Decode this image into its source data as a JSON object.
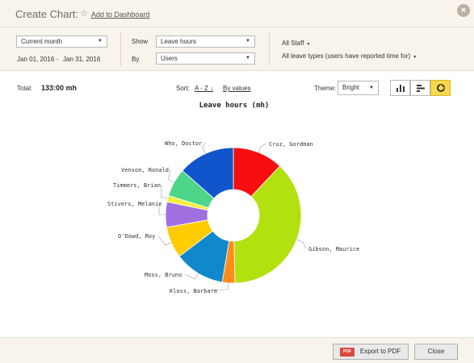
{
  "header": {
    "title": "Create Chart:",
    "add_dashboard": "Add to Dashboard",
    "close_symbol": "×"
  },
  "filters": {
    "period": {
      "value": "Current month"
    },
    "date_from": "Jan 01, 2016",
    "date_sep": "-",
    "date_to": "Jan 31, 2016",
    "show_label": "Show",
    "show_value": "Leave hours",
    "by_label": "By",
    "by_value": "Users",
    "staff": "All Staff",
    "leave_types": "All leave types (users have reported time for)"
  },
  "toolbar": {
    "total_label": "Total:",
    "total_value": "133:00 mh",
    "sort_label": "Sort:",
    "sort_az": "A - Z ↓",
    "sort_by_values": "By values",
    "theme_label": "Theme:",
    "theme_value": "Bright",
    "view_buttons": [
      "bar-vertical",
      "bar-horizontal",
      "pie"
    ],
    "active_view": "pie"
  },
  "chart_data": {
    "type": "pie",
    "title": "Leave hours (mh)",
    "donut": true,
    "slices": [
      {
        "label": "Cruz, Gordman",
        "value": 16,
        "color": "#f70f0f"
      },
      {
        "label": "Gibson, Maurice",
        "value": 50,
        "color": "#b3e00f"
      },
      {
        "label": "Kloss, Barbara",
        "value": 4,
        "color": "#ff8c1a"
      },
      {
        "label": "Moss, Bruno",
        "value": 16,
        "color": "#1188cc"
      },
      {
        "label": "O'Dowd, Roy",
        "value": 10,
        "color": "#ffcc00"
      },
      {
        "label": "Stivers, Melanie",
        "value": 8,
        "color": "#a070e0"
      },
      {
        "label": "Timmers, Brian",
        "value": 2,
        "color": "#f4f03a"
      },
      {
        "label": "Venson, Ronald",
        "value": 9,
        "color": "#4dd68a"
      },
      {
        "label": "Who, Doctor",
        "value": 18,
        "color": "#1155cc"
      }
    ]
  },
  "footer": {
    "export_label": "Export to PDF",
    "pdf_badge": "PDF",
    "close_label": "Close"
  }
}
